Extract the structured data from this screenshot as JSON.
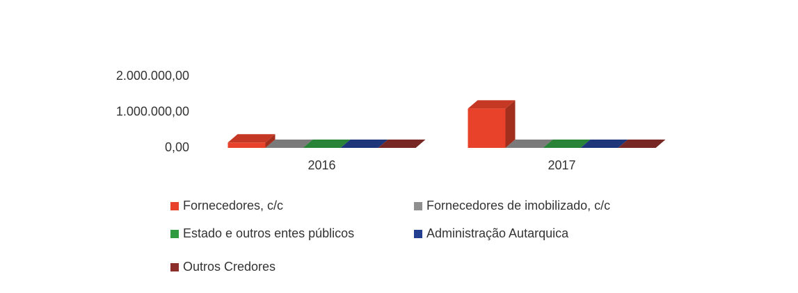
{
  "chart_data": {
    "type": "bar3d",
    "categories": [
      "2016",
      "2017"
    ],
    "series": [
      {
        "name": "Fornecedores, c/c",
        "color": "#e8432a",
        "values": [
          150000,
          1100000
        ]
      },
      {
        "name": "Fornecedores de imobilizado, c/c",
        "color": "#8f8f8f",
        "values": [
          0,
          0
        ]
      },
      {
        "name": "Estado e outros entes públicos",
        "color": "#2f9a40",
        "values": [
          0,
          0
        ]
      },
      {
        "name": "Administração Autarquica",
        "color": "#22408f",
        "values": [
          0,
          0
        ]
      },
      {
        "name": "Outros Credores",
        "color": "#8c2e2a",
        "values": [
          0,
          0
        ]
      }
    ],
    "ylim": [
      0,
      2000000
    ],
    "yticks": [
      {
        "value": 0,
        "label": "0,00"
      },
      {
        "value": 1000000,
        "label": "1.000.000,00"
      },
      {
        "value": 2000000,
        "label": "2.000.000,00"
      }
    ],
    "grid": false,
    "legend": "bottom"
  }
}
